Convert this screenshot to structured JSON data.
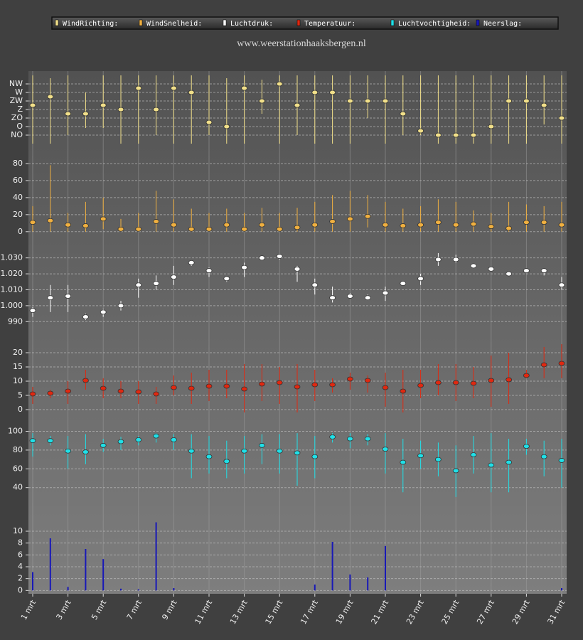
{
  "chart_data": {
    "type": "stacked-panels",
    "title": "www.weerstationhaaksbergen.nl",
    "categories": [
      "1 mrt",
      null,
      "3 mrt",
      null,
      "5 mrt",
      null,
      "7 mrt",
      null,
      "9 mrt",
      null,
      "11 mrt",
      null,
      "13 mrt",
      null,
      "15 mrt",
      null,
      "17 mrt",
      null,
      "19 mrt",
      null,
      "21 mrt",
      null,
      "23 mrt",
      null,
      "25 mrt",
      null,
      "27 mrt",
      null,
      "29 mrt",
      null,
      "31 mrt"
    ],
    "grid": true,
    "panels": [
      {
        "type": "errorbar",
        "name": "WindRichting:",
        "color": "#f2e08a",
        "values": [
          202.5,
          247.5,
          157.5,
          157.5,
          202.5,
          180,
          292.5,
          180,
          292.5,
          270,
          112.5,
          90,
          292.5,
          225,
          315,
          202.5,
          270,
          270,
          225,
          225,
          225,
          157.5,
          67.5,
          45,
          45,
          45,
          90,
          225,
          225,
          202.5,
          135
        ],
        "low": [
          0,
          0,
          45,
          82.5,
          82.5,
          0,
          0,
          45,
          0,
          0,
          45,
          0,
          0,
          157.5,
          0,
          45,
          0,
          0,
          0,
          135,
          0,
          45,
          45,
          0,
          0,
          0,
          0,
          0,
          0,
          101,
          0
        ],
        "high": [
          360,
          345,
          360,
          270,
          360,
          360,
          360,
          360,
          360,
          360,
          360,
          345,
          360,
          337.5,
          360,
          360,
          360,
          360,
          360,
          360,
          360,
          360,
          360,
          360,
          360,
          360,
          360,
          360,
          360,
          360,
          360
        ],
        "ylim": [
          0,
          360
        ],
        "yticks": [
          {
            "value": 45,
            "label": "NO"
          },
          {
            "value": 90,
            "label": "O"
          },
          {
            "value": 135,
            "label": "ZO"
          },
          {
            "value": 180,
            "label": "Z"
          },
          {
            "value": 225,
            "label": "ZW"
          },
          {
            "value": 270,
            "label": "W"
          },
          {
            "value": 315,
            "label": "NW"
          }
        ]
      },
      {
        "type": "errorbar",
        "name": "WindSnelheid:",
        "color": "#f0b040",
        "values": [
          11,
          13,
          8,
          7,
          15,
          3,
          3,
          12,
          8,
          3,
          3,
          8,
          3,
          8,
          3,
          5,
          8,
          12,
          15,
          18,
          8,
          7,
          8,
          11,
          8,
          9,
          6,
          4,
          11,
          11,
          8
        ],
        "low": [
          0,
          0,
          0,
          0,
          3,
          0,
          0,
          0,
          0,
          0,
          0,
          0,
          0,
          0,
          0,
          0,
          0,
          0,
          0,
          5,
          0,
          0,
          0,
          0,
          0,
          0,
          0,
          0,
          0,
          0,
          0
        ],
        "high": [
          30,
          78,
          22,
          35,
          40,
          15,
          22,
          48,
          38,
          27,
          22,
          27,
          22,
          28,
          22,
          28,
          35,
          43,
          48,
          43,
          35,
          27,
          30,
          38,
          35,
          25,
          22,
          35,
          32,
          30,
          35
        ],
        "ylim": [
          -6,
          100
        ],
        "yticks": [
          0,
          20,
          40,
          60,
          80
        ]
      },
      {
        "type": "errorbar",
        "name": "Luchtdruk:",
        "color": "#ffffff",
        "values": [
          997,
          1005,
          1006,
          993,
          996,
          1000,
          1013,
          1014,
          1018,
          1027,
          1022,
          1017,
          1024,
          1030,
          1031,
          1023,
          1013,
          1005,
          1006,
          1005,
          1008,
          1014,
          1017,
          1029,
          1029,
          1025,
          1023,
          1020,
          1022,
          1022,
          1013
        ],
        "low": [
          993,
          996,
          996,
          991,
          993,
          997,
          1005,
          1010,
          1013,
          1025,
          1018,
          1015,
          1018,
          1029,
          1029,
          1015,
          1007,
          1002,
          1005,
          1004,
          1003,
          1013,
          1013,
          1025,
          1027,
          1024,
          1022,
          1019,
          1021,
          1019,
          1010
        ],
        "high": [
          999,
          1013,
          1013,
          995,
          998,
          1003,
          1017,
          1019,
          1025,
          1028,
          1024,
          1018,
          1027,
          1031,
          1032,
          1025,
          1017,
          1012,
          1008,
          1007,
          1012,
          1015,
          1020,
          1033,
          1032,
          1026,
          1024,
          1021,
          1023,
          1023,
          1018
        ],
        "ylim": [
          983,
          1041
        ],
        "yticks": [
          990,
          {
            "value": 1000,
            "label": "1.000"
          },
          {
            "value": 1010,
            "label": "1.010"
          },
          {
            "value": 1020,
            "label": "1.020"
          },
          {
            "value": 1030,
            "label": "1.030"
          }
        ]
      },
      {
        "type": "errorbar",
        "name": "Temperatuur:",
        "color": "#e02810",
        "values": [
          5.5,
          5.75,
          6.5,
          10.25,
          7.5,
          6.5,
          6.25,
          5.5,
          7.75,
          7.5,
          8.25,
          8.25,
          7.25,
          9,
          9.5,
          8,
          8.75,
          8.75,
          10.75,
          10.25,
          7.75,
          6.5,
          8.5,
          9.5,
          9.5,
          9.25,
          10.25,
          10.5,
          12,
          15.75,
          16.25
        ],
        "low": [
          2,
          4,
          2,
          7,
          4,
          4,
          2,
          2,
          5,
          2,
          3,
          4,
          -1,
          3,
          2,
          -1,
          3,
          6,
          7,
          6,
          1,
          -1,
          4,
          5,
          3,
          4,
          1,
          2,
          11,
          11,
          11
        ],
        "high": [
          8,
          7,
          10,
          14,
          11,
          10,
          10,
          8,
          12,
          13,
          14,
          14,
          16,
          16,
          15,
          16,
          14,
          11,
          13,
          12,
          13,
          14,
          14,
          16,
          16,
          15,
          19,
          20,
          14,
          22,
          23
        ],
        "ylim": [
          -3.5,
          26.5
        ],
        "yticks": [
          0,
          5,
          10,
          15,
          20
        ]
      },
      {
        "type": "errorbar",
        "name": "Luchtvochtigheid:",
        "color": "#20e0e8",
        "values": [
          90,
          90,
          79,
          78,
          85,
          89,
          91,
          95,
          91,
          79,
          73,
          68,
          79,
          85,
          79,
          77,
          73,
          94,
          92,
          92,
          81,
          67,
          74,
          70,
          58,
          75,
          64,
          67,
          84,
          73,
          69
        ],
        "low": [
          73,
          85,
          60,
          65,
          78,
          80,
          85,
          88,
          80,
          50,
          55,
          50,
          55,
          65,
          55,
          42,
          50,
          88,
          82,
          85,
          55,
          35,
          60,
          52,
          30,
          55,
          35,
          35,
          75,
          52,
          40
        ],
        "high": [
          98,
          95,
          95,
          97,
          92,
          94,
          95,
          98,
          97,
          97,
          95,
          90,
          95,
          97,
          97,
          98,
          95,
          98,
          98,
          97,
          98,
          92,
          90,
          88,
          85,
          95,
          98,
          92,
          92,
          90,
          92
        ],
        "ylim": [
          14,
          111
        ],
        "yticks": [
          40,
          60,
          80,
          100
        ]
      },
      {
        "type": "bar",
        "name": "Neerslag:",
        "color": "#1818b8",
        "values": [
          3.1,
          8.8,
          0.6,
          7,
          5.3,
          0.3,
          0.2,
          11.5,
          0.4,
          0,
          0,
          0,
          0,
          0,
          0,
          0,
          1,
          8.2,
          2.7,
          2.2,
          7.5,
          0,
          0,
          0,
          0,
          0,
          0,
          0,
          0,
          0,
          0.4
        ],
        "ylim": [
          -0.2,
          13
        ],
        "yticks": [
          0,
          2,
          4,
          6,
          8,
          10
        ]
      }
    ]
  }
}
